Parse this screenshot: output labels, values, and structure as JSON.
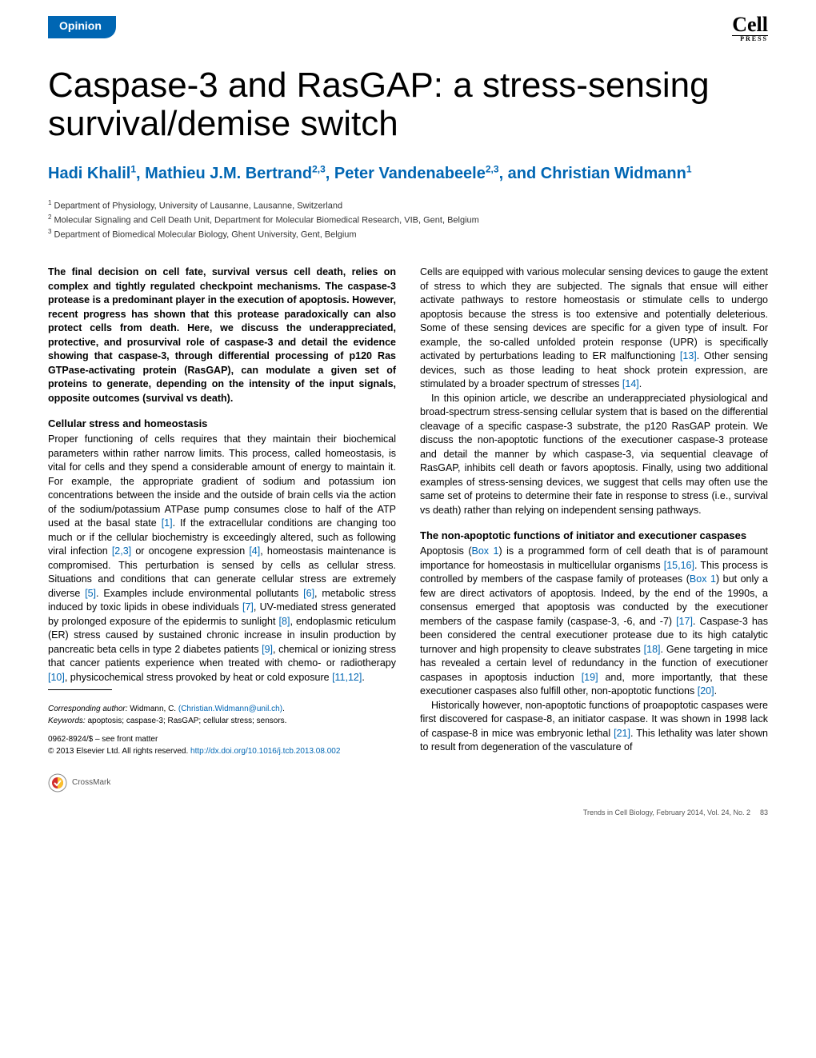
{
  "header": {
    "section_label": "Opinion",
    "logo_top": "Cell",
    "logo_bottom": "PRESS"
  },
  "title": "Caspase-3 and RasGAP: a stress-sensing survival/demise switch",
  "authors_html": "Hadi Khalil<sup>1</sup>, Mathieu J.M. Bertrand<sup>2,3</sup>, Peter Vandenabeele<sup>2,3</sup>, and Christian Widmann<sup>1</sup>",
  "affiliations": [
    "<sup>1</sup> Department of Physiology, University of Lausanne, Lausanne, Switzerland",
    "<sup>2</sup> Molecular Signaling and Cell Death Unit, Department for Molecular Biomedical Research, VIB, Gent, Belgium",
    "<sup>3</sup> Department of Biomedical Molecular Biology, Ghent University, Gent, Belgium"
  ],
  "abstract": "The final decision on cell fate, survival versus cell death, relies on complex and tightly regulated checkpoint mechanisms. The caspase-3 protease is a predominant player in the execution of apoptosis. However, recent progress has shown that this protease paradoxically can also protect cells from death. Here, we discuss the underappreciated, protective, and prosurvival role of caspase-3 and detail the evidence showing that caspase-3, through differential processing of p120 Ras GTPase-activating protein (RasGAP), can modulate a given set of proteins to generate, depending on the intensity of the input signals, opposite outcomes (survival vs death).",
  "sections": {
    "left": {
      "heading1": "Cellular stress and homeostasis",
      "para1_pre": "Proper functioning of cells requires that they maintain their biochemical parameters within rather narrow limits. This process, called homeostasis, is vital for cells and they spend a considerable amount of energy to maintain it. For example, the appropriate gradient of sodium and potassium ion concentrations between the inside and the outside of brain cells via the action of the sodium/potassium ATPase pump consumes close to half of the ATP used at the basal state ",
      "ref1": "[1]",
      "para1_mid1": ". If the extracellular conditions are changing too much or if the cellular biochemistry is exceedingly altered, such as following viral infection ",
      "ref23": "[2,3]",
      "para1_mid2": " or oncogene expression ",
      "ref4": "[4]",
      "para1_mid3": ", homeostasis maintenance is compromised. This perturbation is sensed by cells as cellular stress. Situations and conditions that can generate cellular stress are extremely diverse ",
      "ref5": "[5]",
      "para1_mid4": ". Examples include environmental pollutants ",
      "ref6": "[6]",
      "para1_mid5": ", metabolic stress induced by toxic lipids in obese individuals ",
      "ref7": "[7]",
      "para1_mid6": ", UV-mediated stress generated by prolonged exposure of the epidermis to sunlight ",
      "ref8": "[8]",
      "para1_mid7": ", endoplasmic reticulum (ER) stress caused by sustained chronic increase in insulin production by pancreatic beta cells in type 2 diabetes patients ",
      "ref9": "[9]",
      "para1_mid8": ", chemical or ionizing stress that cancer patients experience when treated with chemo- or radiotherapy ",
      "ref10": "[10]",
      "para1_mid9": ", physicochemical stress provoked by heat or cold exposure ",
      "ref1112": "[11,12]",
      "para1_end": "."
    },
    "right": {
      "para1_pre": "Cells are equipped with various molecular sensing devices to gauge the extent of stress to which they are subjected. The signals that ensue will either activate pathways to restore homeostasis or stimulate cells to undergo apoptosis because the stress is too extensive and potentially deleterious. Some of these sensing devices are specific for a given type of insult. For example, the so-called unfolded protein response (UPR) is specifically activated by perturbations leading to ER malfunctioning ",
      "ref13": "[13]",
      "para1_mid1": ". Other sensing devices, such as those leading to heat shock protein expression, are stimulated by a broader spectrum of stresses ",
      "ref14": "[14]",
      "para1_end": ".",
      "para2": "In this opinion article, we describe an underappreciated physiological and broad-spectrum stress-sensing cellular system that is based on the differential cleavage of a specific caspase-3 substrate, the p120 RasGAP protein. We discuss the non-apoptotic functions of the executioner caspase-3 protease and detail the manner by which caspase-3, via sequential cleavage of RasGAP, inhibits cell death or favors apoptosis. Finally, using two additional examples of stress-sensing devices, we suggest that cells may often use the same set of proteins to determine their fate in response to stress (i.e., survival vs death) rather than relying on independent sensing pathways.",
      "heading2": "The non-apoptotic functions of initiator and executioner caspases",
      "para3_pre": "Apoptosis (",
      "box1a": "Box 1",
      "para3_mid1": ") is a programmed form of cell death that is of paramount importance for homeostasis in multicellular organisms ",
      "ref1516": "[15,16]",
      "para3_mid2": ". This process is controlled by members of the caspase family of proteases (",
      "box1b": "Box 1",
      "para3_mid3": ") but only a few are direct activators of apoptosis. Indeed, by the end of the 1990s, a consensus emerged that apoptosis was conducted by the executioner members of the caspase family (caspase-3, -6, and -7) ",
      "ref17": "[17]",
      "para3_mid4": ". Caspase-3 has been considered the central executioner protease due to its high catalytic turnover and high propensity to cleave substrates ",
      "ref18": "[18]",
      "para3_mid5": ". Gene targeting in mice has revealed a certain level of redundancy in the function of executioner caspases in apoptosis induction ",
      "ref19": "[19]",
      "para3_mid6": " and, more importantly, that these executioner caspases also fulfill other, non-apoptotic functions ",
      "ref20": "[20]",
      "para3_end": ".",
      "para4_pre": "Historically however, non-apoptotic functions of proapoptotic caspases were first discovered for caspase-8, an initiator caspase. It was shown in 1998 lack of caspase-8 in mice was embryonic lethal ",
      "ref21": "[21]",
      "para4_end": ". This lethality was later shown to result from degeneration of the vasculature of"
    }
  },
  "footer": {
    "corresponding_label": "Corresponding author:",
    "corresponding_name": " Widmann, C. ",
    "email": "(Christian.Widmann@unil.ch)",
    "keywords_label": "Keywords:",
    "keywords": " apoptosis; caspase-3; RasGAP; cellular stress; sensors.",
    "issn": "0962-8924/$ – see front matter",
    "copyright": "© 2013 Elsevier Ltd. All rights reserved. ",
    "doi": "http://dx.doi.org/10.1016/j.tcb.2013.08.002",
    "crossmark": "CrossMark",
    "journal_footer": "Trends in Cell Biology, February 2014, Vol. 24, No. 2",
    "page_number": "83"
  },
  "colors": {
    "primary_blue": "#0066b3",
    "text_black": "#000000",
    "background": "#ffffff"
  }
}
